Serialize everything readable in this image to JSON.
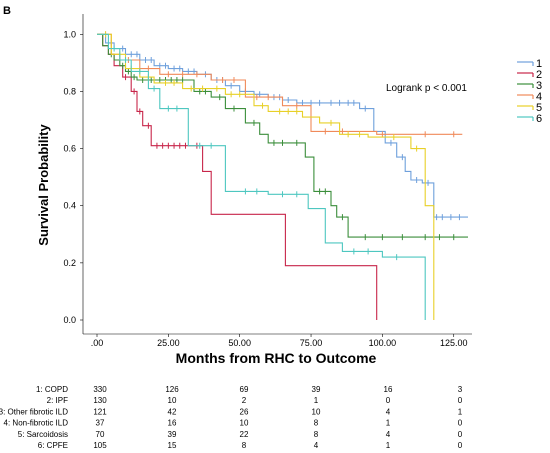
{
  "panel_label": "B",
  "chart_data": {
    "type": "line",
    "xlabel": "Months from RHC to Outcome",
    "ylabel": "Survival Probability",
    "xlim": [
      0,
      130
    ],
    "ylim": [
      0,
      1.05
    ],
    "x_ticks": [
      0,
      25,
      50,
      75,
      100,
      125
    ],
    "x_tick_labels": [
      ".00",
      "25.00",
      "50.00",
      "75.00",
      "100.00",
      "125.00"
    ],
    "y_ticks": [
      0,
      0.2,
      0.4,
      0.6,
      0.8,
      1.0
    ],
    "y_tick_labels": [
      "0.0",
      "0.2",
      "0.4",
      "0.6",
      "0.8",
      "1.0"
    ],
    "annotation": "Logrank p < 0.001",
    "legend_position": "right",
    "series": [
      {
        "name": "1",
        "color": "#6fa0dc",
        "steps": [
          [
            0,
            1.0
          ],
          [
            3,
            0.97
          ],
          [
            6,
            0.95
          ],
          [
            10,
            0.93
          ],
          [
            15,
            0.91
          ],
          [
            20,
            0.89
          ],
          [
            25,
            0.88
          ],
          [
            30,
            0.87
          ],
          [
            35,
            0.86
          ],
          [
            40,
            0.84
          ],
          [
            45,
            0.82
          ],
          [
            50,
            0.8
          ],
          [
            55,
            0.79
          ],
          [
            60,
            0.78
          ],
          [
            65,
            0.77
          ],
          [
            70,
            0.76
          ],
          [
            80,
            0.76
          ],
          [
            92,
            0.74
          ],
          [
            97,
            0.66
          ],
          [
            101,
            0.62
          ],
          [
            105,
            0.57
          ],
          [
            108,
            0.52
          ],
          [
            110,
            0.49
          ],
          [
            114,
            0.48
          ],
          [
            118,
            0.36
          ],
          [
            130,
            0.36
          ]
        ],
        "censor": [
          5,
          9,
          12,
          14,
          17,
          19,
          22,
          24,
          27,
          29,
          32,
          34,
          38,
          42,
          44,
          47,
          52,
          57,
          62,
          64,
          67,
          72,
          75,
          78,
          82,
          85,
          88,
          90,
          94,
          103,
          107,
          112,
          116,
          119,
          121,
          124,
          127
        ]
      },
      {
        "name": "2",
        "color": "#c8264a",
        "steps": [
          [
            0,
            1.0
          ],
          [
            2,
            0.96
          ],
          [
            4,
            0.93
          ],
          [
            6,
            0.89
          ],
          [
            9,
            0.85
          ],
          [
            12,
            0.8
          ],
          [
            14,
            0.73
          ],
          [
            16,
            0.68
          ],
          [
            19,
            0.61
          ],
          [
            37,
            0.52
          ],
          [
            40,
            0.37
          ],
          [
            66,
            0.19
          ],
          [
            98,
            0.0
          ]
        ],
        "censor": [
          10,
          13,
          15,
          18,
          21,
          23,
          25,
          27,
          29,
          31,
          35
        ]
      },
      {
        "name": "3",
        "color": "#3b8e3b",
        "steps": [
          [
            0,
            1.0
          ],
          [
            2,
            0.96
          ],
          [
            4,
            0.93
          ],
          [
            6,
            0.91
          ],
          [
            8,
            0.89
          ],
          [
            10,
            0.87
          ],
          [
            12,
            0.85
          ],
          [
            14,
            0.84
          ],
          [
            34,
            0.8
          ],
          [
            40,
            0.78
          ],
          [
            45,
            0.74
          ],
          [
            52,
            0.69
          ],
          [
            57,
            0.65
          ],
          [
            60,
            0.62
          ],
          [
            73,
            0.57
          ],
          [
            76,
            0.45
          ],
          [
            82,
            0.4
          ],
          [
            84,
            0.36
          ],
          [
            88,
            0.29
          ],
          [
            130,
            0.29
          ]
        ],
        "censor": [
          5,
          9,
          11,
          13,
          16,
          19,
          22,
          24,
          26,
          28,
          30,
          36,
          38,
          43,
          48,
          55,
          62,
          65,
          70,
          78,
          80,
          86,
          94,
          100,
          107,
          115,
          120,
          125
        ]
      },
      {
        "name": "4",
        "color": "#f08a5a",
        "steps": [
          [
            0,
            1.0
          ],
          [
            5,
            0.93
          ],
          [
            8,
            0.91
          ],
          [
            15,
            0.88
          ],
          [
            22,
            0.86
          ],
          [
            40,
            0.84
          ],
          [
            52,
            0.78
          ],
          [
            65,
            0.75
          ],
          [
            75,
            0.66
          ],
          [
            98,
            0.65
          ],
          [
            128,
            0.65
          ]
        ],
        "censor": [
          3,
          11,
          18,
          25,
          30,
          35,
          44,
          48,
          56,
          60,
          70,
          80,
          86,
          100,
          115,
          125
        ]
      },
      {
        "name": "5",
        "color": "#e8d028",
        "steps": [
          [
            0,
            1.0
          ],
          [
            5,
            0.93
          ],
          [
            10,
            0.88
          ],
          [
            15,
            0.85
          ],
          [
            20,
            0.83
          ],
          [
            30,
            0.81
          ],
          [
            45,
            0.79
          ],
          [
            55,
            0.75
          ],
          [
            60,
            0.73
          ],
          [
            72,
            0.71
          ],
          [
            78,
            0.69
          ],
          [
            85,
            0.65
          ],
          [
            95,
            0.64
          ],
          [
            110,
            0.6
          ],
          [
            115,
            0.4
          ],
          [
            118,
            0.0
          ]
        ],
        "censor": [
          3,
          8,
          12,
          18,
          24,
          27,
          33,
          37,
          42,
          47,
          50,
          58,
          64,
          67,
          70,
          82,
          88,
          92,
          104,
          112
        ]
      },
      {
        "name": "6",
        "color": "#4ec7c0",
        "steps": [
          [
            0,
            1.0
          ],
          [
            4,
            0.95
          ],
          [
            8,
            0.91
          ],
          [
            12,
            0.87
          ],
          [
            18,
            0.81
          ],
          [
            22,
            0.74
          ],
          [
            32,
            0.61
          ],
          [
            45,
            0.45
          ],
          [
            60,
            0.44
          ],
          [
            74,
            0.39
          ],
          [
            80,
            0.27
          ],
          [
            86,
            0.24
          ],
          [
            100,
            0.22
          ],
          [
            115,
            0.0
          ]
        ],
        "censor": [
          6,
          10,
          15,
          20,
          25,
          28,
          36,
          40,
          52,
          56,
          65,
          70,
          90,
          95,
          105
        ]
      }
    ],
    "risk_table": {
      "labels": [
        "1: COPD",
        "2: IPF",
        "3: Other fibrotic ILD",
        "4: Non-fibrotic ILD",
        "5: Sarcoidosis",
        "6: CPFE"
      ],
      "rows": [
        [
          "330",
          "126",
          "69",
          "39",
          "16",
          "3"
        ],
        [
          "130",
          "10",
          "2",
          "1",
          "0",
          "0"
        ],
        [
          "121",
          "42",
          "26",
          "10",
          "4",
          "1"
        ],
        [
          "37",
          "16",
          "10",
          "8",
          "1",
          "0"
        ],
        [
          "70",
          "39",
          "22",
          "8",
          "4",
          "0"
        ],
        [
          "105",
          "15",
          "8",
          "4",
          "1",
          "0"
        ]
      ]
    }
  }
}
